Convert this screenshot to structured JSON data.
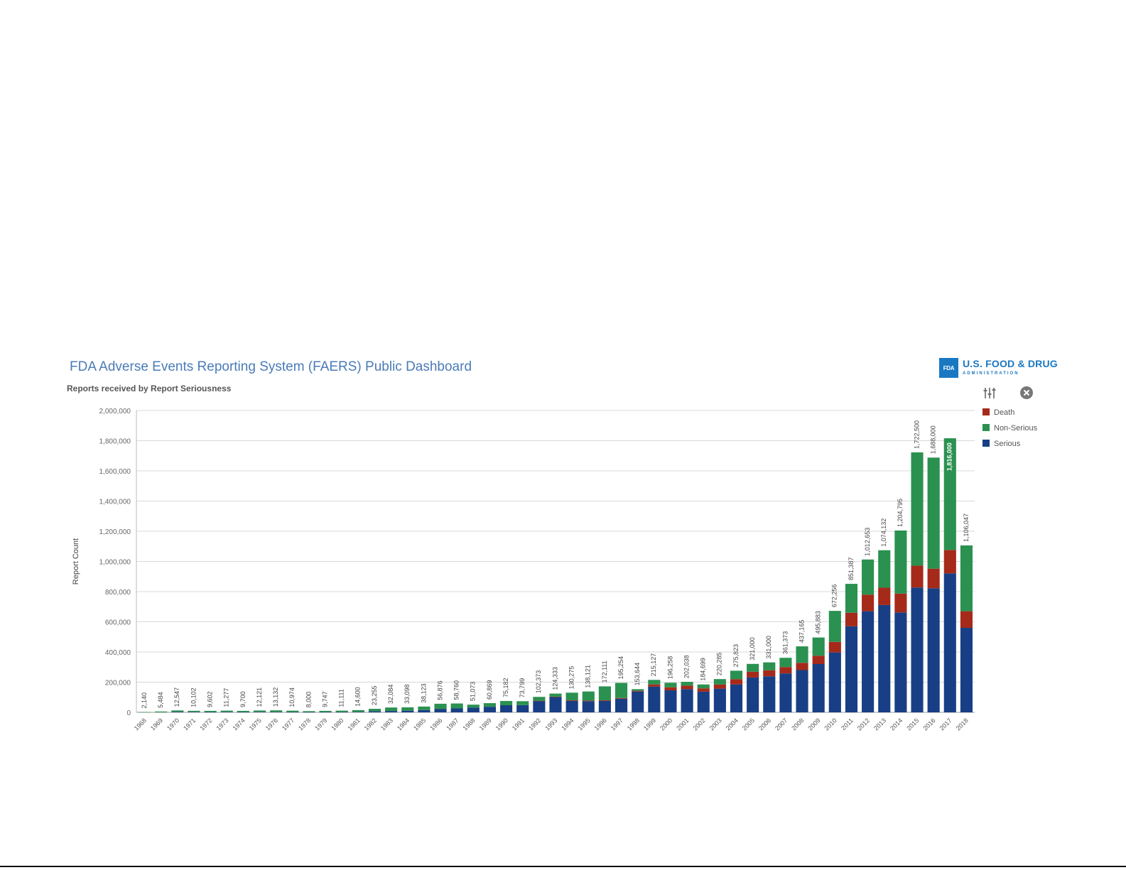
{
  "header": {
    "title": "FDA Adverse Events Reporting System (FAERS) Public Dashboard",
    "logo_box": "FDA",
    "logo_name": "U.S. FOOD & DRUG",
    "logo_sub": "ADMINISTRATION"
  },
  "toolbar": {
    "icons": [
      "sliders-icon",
      "close-circle-icon"
    ]
  },
  "colors": {
    "death": "#a52a1a",
    "non_serious": "#2b9150",
    "serious": "#183f85",
    "grid": "#d9d9d9",
    "title": "#4a7bb7"
  },
  "chart_data": {
    "type": "bar",
    "stacked": true,
    "title": "Reports received by Report Seriousness",
    "ylabel": "Report Count",
    "ylim": [
      0,
      2000000
    ],
    "y_ticks": [
      0,
      200000,
      400000,
      600000,
      800000,
      1000000,
      1200000,
      1400000,
      1600000,
      1800000,
      2000000
    ],
    "y_tick_labels": [
      "0",
      "200,000",
      "400,000",
      "600,000",
      "800,000",
      "1,000,000",
      "1,200,000",
      "1,400,000",
      "1,600,000",
      "1,800,000",
      "2,000,000"
    ],
    "grid": true,
    "legend_position": "top-right",
    "categories": [
      "1968",
      "1969",
      "1970",
      "1971",
      "1972",
      "1973",
      "1974",
      "1975",
      "1976",
      "1977",
      "1978",
      "1979",
      "1980",
      "1981",
      "1982",
      "1983",
      "1984",
      "1985",
      "1986",
      "1987",
      "1988",
      "1989",
      "1990",
      "1991",
      "1992",
      "1993",
      "1994",
      "1995",
      "1996",
      "1997",
      "1998",
      "1999",
      "2000",
      "2001",
      "2002",
      "2003",
      "2004",
      "2005",
      "2006",
      "2007",
      "2008",
      "2009",
      "2010",
      "2011",
      "2012",
      "2013",
      "2014",
      "2015",
      "2016",
      "2017",
      "2018"
    ],
    "totals": [
      2140,
      5484,
      12547,
      10102,
      9602,
      11277,
      9700,
      12121,
      13132,
      10974,
      8000,
      9747,
      11111,
      14600,
      23255,
      32084,
      33098,
      38123,
      56876,
      58760,
      51073,
      60869,
      75182,
      73799,
      102373,
      124333,
      130275,
      138121,
      172111,
      195254,
      153644,
      215127,
      196258,
      202038,
      184699,
      220285,
      275823,
      321000,
      331000,
      361373,
      437165,
      495883,
      672256,
      851387,
      1012653,
      1074132,
      1204795,
      1722500,
      1688000,
      1816000,
      1106047
    ],
    "total_labels": [
      "2,140",
      "5,484",
      "12,547",
      "10,102",
      "9,602",
      "11,277",
      "9,700",
      "12,121",
      "13,132",
      "10,974",
      "8,000",
      "9,747",
      "11,111",
      "14,600",
      "23,255",
      "32,084",
      "33,098",
      "38,123",
      "56,876",
      "58,760",
      "51,073",
      "60,869",
      "75,182",
      "73,799",
      "102,373",
      "124,333",
      "130,275",
      "138,121",
      "172,111",
      "195,254",
      "153,644",
      "215,127",
      "196,258",
      "202,038",
      "184,699",
      "220,285",
      "275,823",
      "321,000",
      "331,000",
      "361,373",
      "437,165",
      "495,883",
      "672,256",
      "851,387",
      "1,012,653",
      "1,074,132",
      "1,204,795",
      "1,722,500",
      "1,688,000",
      "1,816,000",
      "1,106,047"
    ],
    "series": [
      {
        "name": "Death",
        "values": [
          0,
          0,
          0,
          0,
          0,
          0,
          0,
          0,
          0,
          0,
          0,
          0,
          0,
          0,
          0,
          0,
          0,
          0,
          0,
          0,
          0,
          0,
          0,
          0,
          2000,
          3000,
          4000,
          4000,
          4000,
          5000,
          5000,
          15000,
          20000,
          23000,
          22000,
          28000,
          35000,
          38000,
          40000,
          42000,
          48000,
          55000,
          70000,
          90000,
          110000,
          115000,
          125000,
          145000,
          130000,
          155000,
          110000
        ]
      },
      {
        "name": "Non-Serious",
        "values": [
          2140,
          5484,
          8547,
          7102,
          7602,
          8277,
          7700,
          9121,
          10132,
          8974,
          6500,
          7747,
          9111,
          11600,
          15255,
          23084,
          22098,
          23123,
          33876,
          32760,
          20073,
          23869,
          28182,
          25799,
          25373,
          20333,
          50275,
          60121,
          92111,
          100254,
          10644,
          30127,
          30258,
          25038,
          25699,
          35285,
          55823,
          52000,
          52000,
          61373,
          109165,
          120883,
          205256,
          191387,
          232653,
          248132,
          417795,
          750500,
          736000,
          740000,
          436047
        ]
      },
      {
        "name": "Serious",
        "values": [
          0,
          0,
          4000,
          3000,
          2000,
          3000,
          2000,
          3000,
          3000,
          2000,
          1500,
          2000,
          2000,
          3000,
          8000,
          9000,
          11000,
          15000,
          23000,
          26000,
          31000,
          37000,
          47000,
          48000,
          75000,
          101000,
          76000,
          74000,
          76000,
          90000,
          138000,
          170000,
          146000,
          154000,
          137000,
          157000,
          185000,
          231000,
          239000,
          258000,
          280000,
          320000,
          397000,
          570000,
          670000,
          711000,
          662000,
          827000,
          822000,
          921000,
          560000
        ]
      }
    ]
  }
}
